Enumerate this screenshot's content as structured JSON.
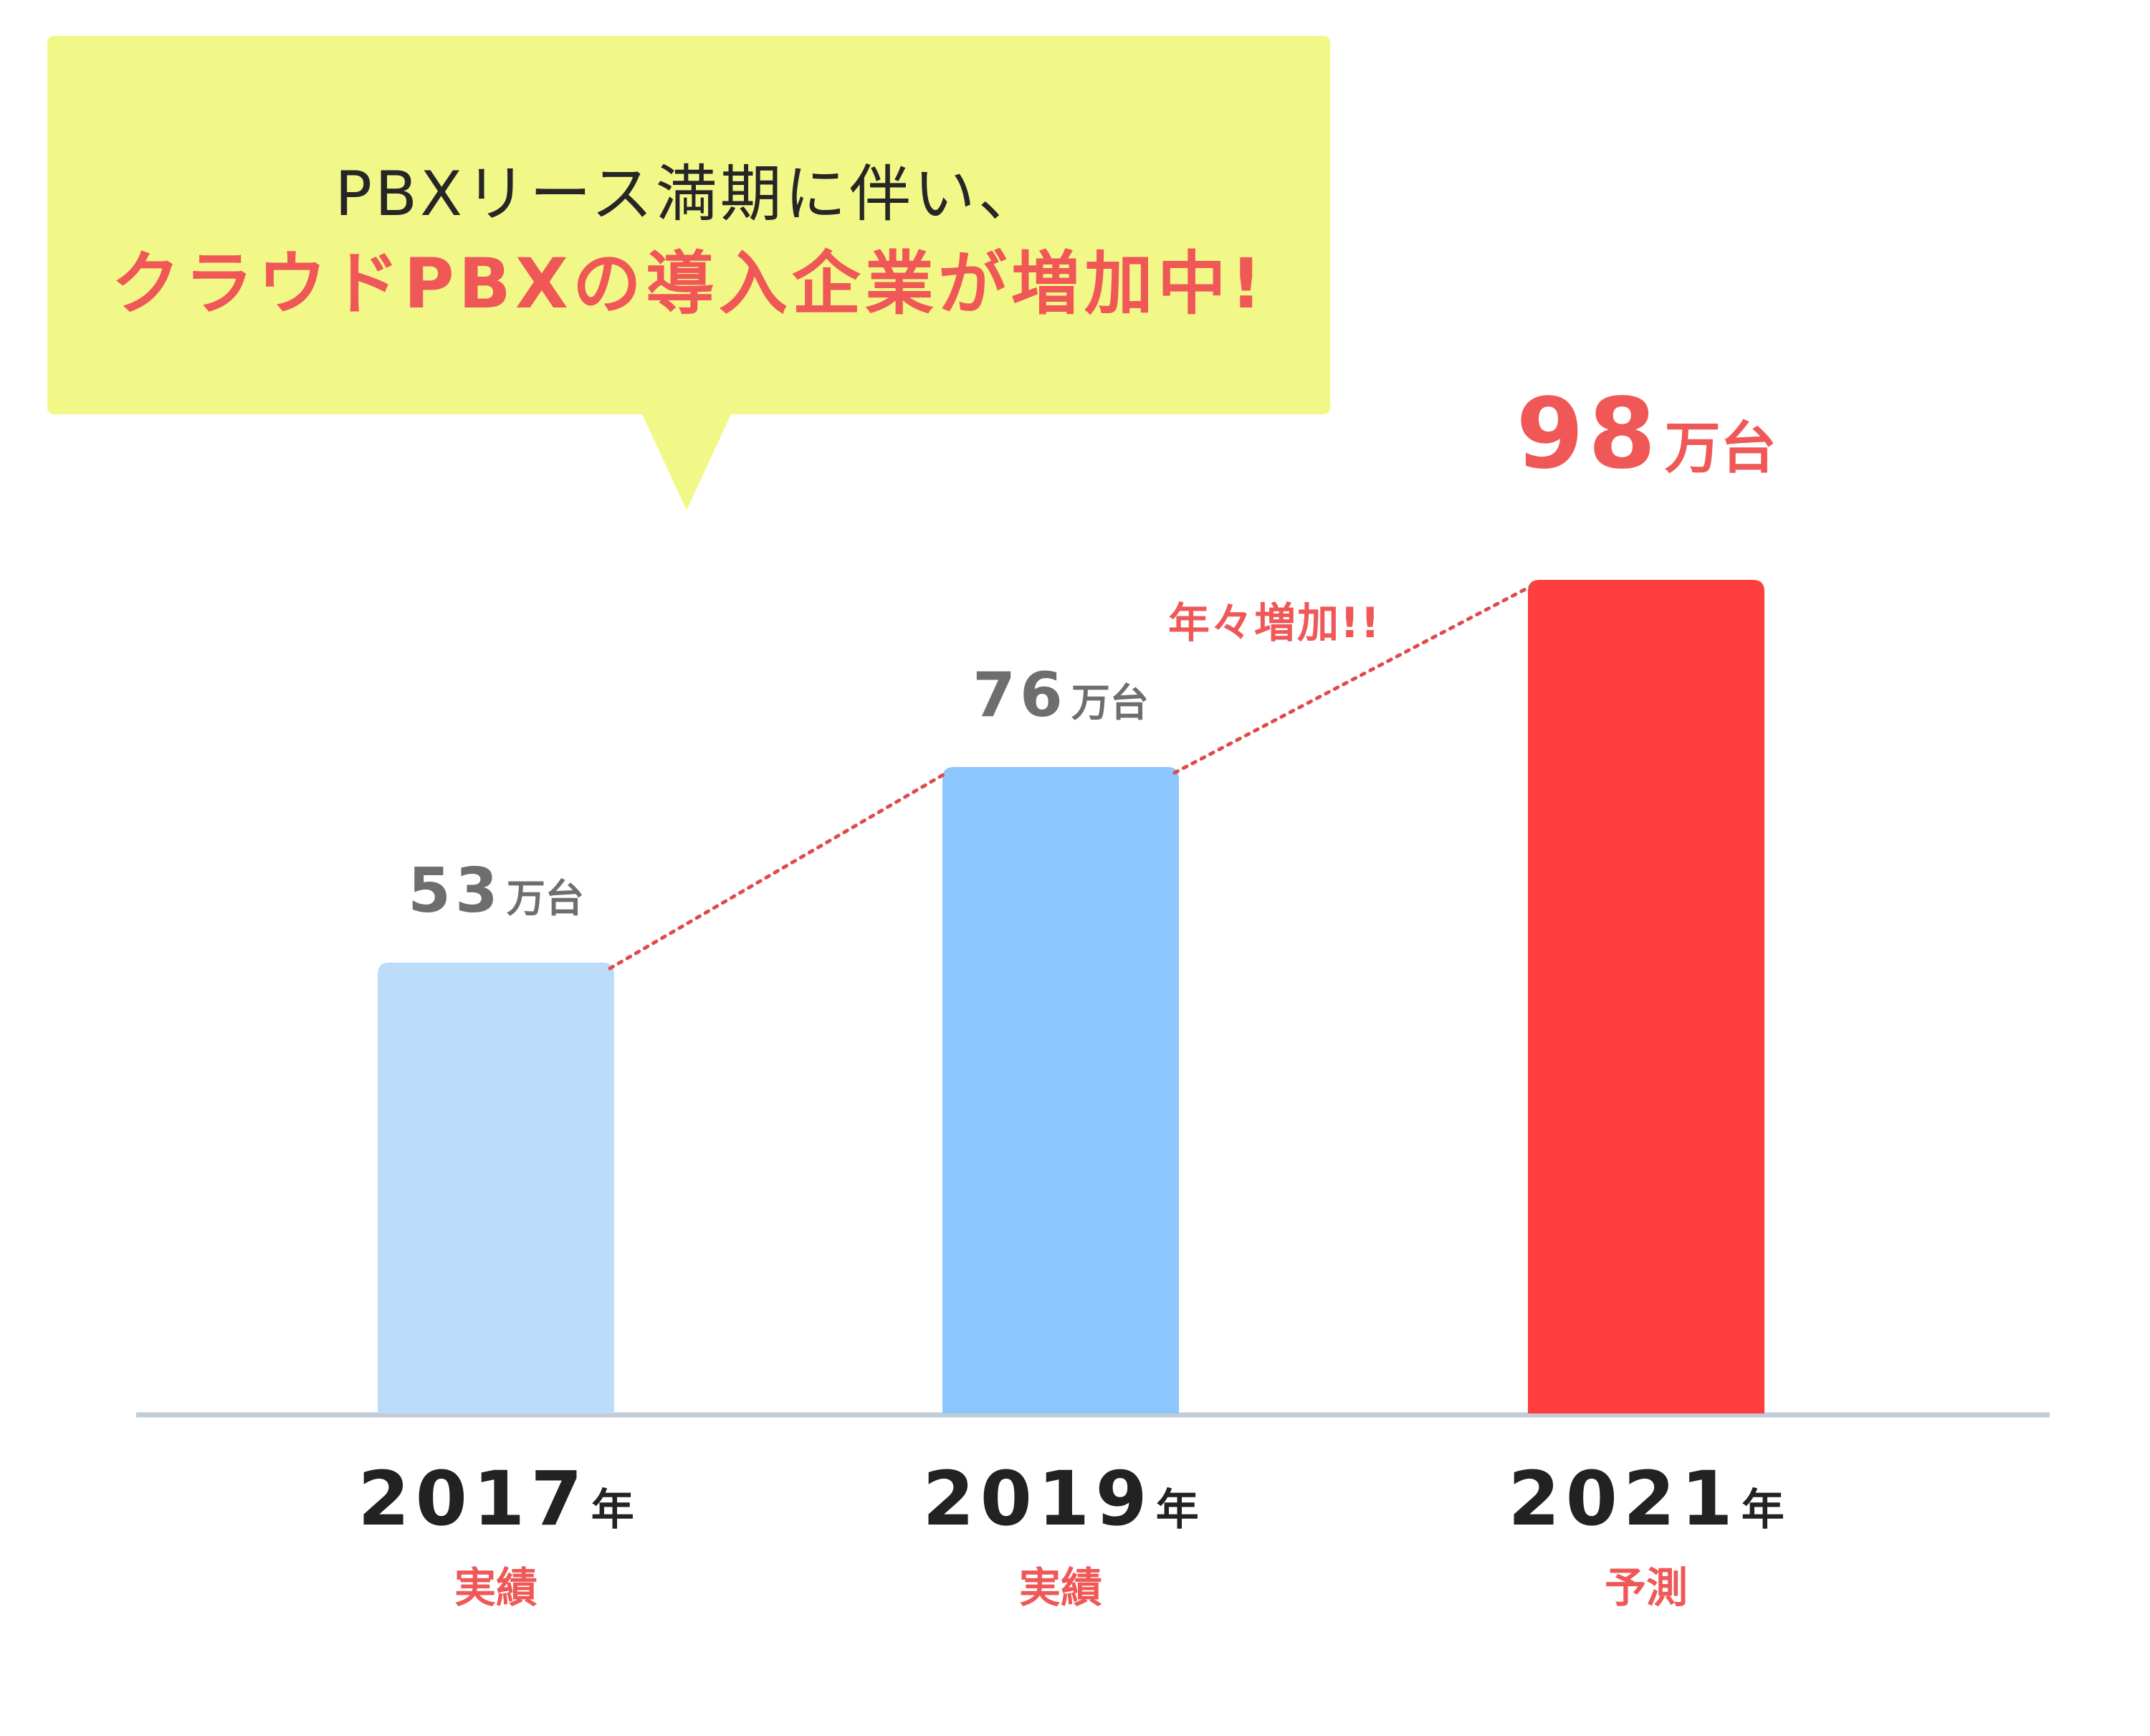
{
  "callout": {
    "line1": "PBXリース満期に伴い、",
    "line2": "クラウドPBXの導入企業が増加中!",
    "background": "#f2f888"
  },
  "chart_data": {
    "type": "bar",
    "categories": [
      "2017",
      "2019",
      "2021"
    ],
    "category_unit": "年",
    "category_notes": [
      "実績",
      "実績",
      "予測"
    ],
    "values": [
      53,
      76,
      98
    ],
    "value_unit": "万台",
    "value_labels": [
      "53",
      "76",
      "98"
    ],
    "highlight_index": 2,
    "colors": [
      "#bcdcfc",
      "#8cc6fd",
      "#ff3f3f"
    ],
    "axis_color": "#c0ccd8",
    "trend_line_color": "#e04a4a",
    "ylim": [
      0,
      98
    ],
    "grid": false,
    "trend_annotation": "年々増加!!"
  }
}
